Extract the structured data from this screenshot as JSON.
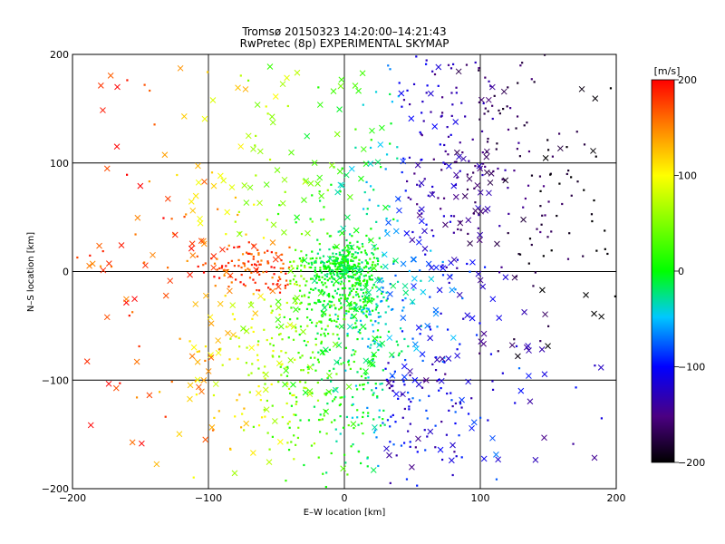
{
  "chart_data": {
    "type": "scatter",
    "title": "Tromsø 20150323 14:20:00–14:21:43",
    "subtitle": "RwPretec (8p) EXPERIMENTAL SKYMAP",
    "xlabel": "E–W location [km]",
    "ylabel": "N–S location [km]",
    "xlim": [
      -200,
      200
    ],
    "ylim": [
      -200,
      200
    ],
    "x_ticks": [
      -200,
      -100,
      0,
      100,
      200
    ],
    "y_ticks": [
      -200,
      -100,
      0,
      100,
      200
    ],
    "grid": true,
    "colorbar": {
      "label": "[m/s]",
      "range": [
        -200,
        200
      ],
      "ticks": [
        200,
        100,
        0,
        -100,
        -200
      ],
      "colors": [
        "#000000",
        "#4b0082",
        "#0000ff",
        "#00c8ff",
        "#00ff00",
        "#ffff00",
        "#ff7f00",
        "#ff0000"
      ]
    },
    "series": [
      {
        "marker": "dot",
        "points": []
      },
      {
        "marker": "x",
        "points": []
      }
    ]
  }
}
